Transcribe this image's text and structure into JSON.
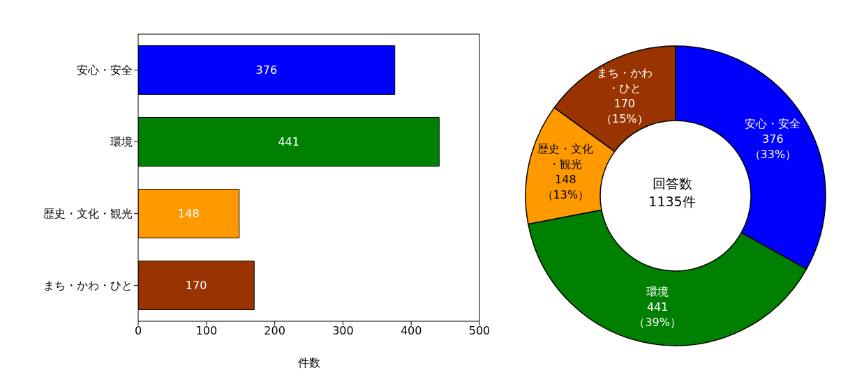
{
  "chart_data": [
    {
      "type": "bar",
      "orientation": "horizontal",
      "categories": [
        "安心・安全",
        "環境",
        "歴史・文化・観光",
        "まち・かわ・ひと"
      ],
      "values": [
        376,
        441,
        148,
        170
      ],
      "colors": [
        "#0000ff",
        "#008000",
        "#ff9900",
        "#993300"
      ],
      "xlim": [
        0,
        500
      ],
      "xticks": [
        0,
        100,
        200,
        300,
        400,
        500
      ],
      "xlabel": "件数",
      "data_labels": true,
      "grid": false,
      "legend": false
    },
    {
      "type": "donut",
      "categories": [
        "安心・安全",
        "環境",
        "歴史・文化・観光",
        "まち・かわ・ひと"
      ],
      "values": [
        376,
        441,
        148,
        170
      ],
      "colors": [
        "#0000ff",
        "#008000",
        "#ff9900",
        "#993300"
      ],
      "value_labels": [
        "376\n（33%）",
        "441\n（39%）",
        "148\n（13%）",
        "170\n（15%）"
      ],
      "annotations": [
        "回答数",
        "1135件"
      ],
      "legend": false
    }
  ]
}
